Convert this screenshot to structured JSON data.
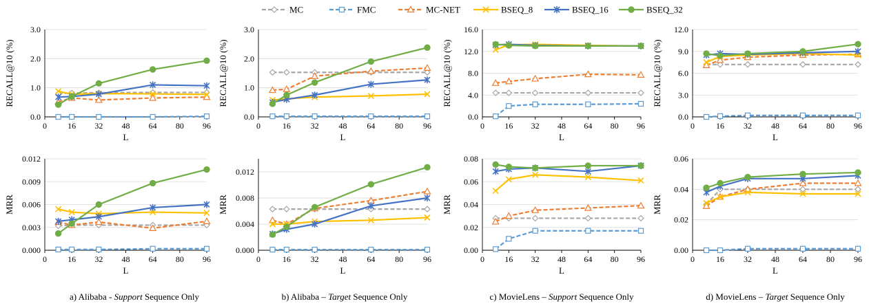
{
  "legend": [
    {
      "name": "MC",
      "color": "#A6A6A6",
      "dash": "6,3",
      "marker": "diamond"
    },
    {
      "name": "FMC",
      "color": "#5B9BD5",
      "dash": "6,3",
      "marker": "square"
    },
    {
      "name": "MC-NET",
      "color": "#ED7D31",
      "dash": "6,3",
      "marker": "triangle"
    },
    {
      "name": "BSEQ_8",
      "color": "#FFC000",
      "dash": "",
      "marker": "x"
    },
    {
      "name": "BSEQ_16",
      "color": "#4472C4",
      "dash": "",
      "marker": "star"
    },
    {
      "name": "BSEQ_32",
      "color": "#70AD47",
      "dash": "",
      "marker": "circle"
    }
  ],
  "captions": [
    {
      "pre": "a) Alibaba - ",
      "em": "Support",
      "post": " Sequence Only"
    },
    {
      "pre": "b) Alibaba – ",
      "em": "Target",
      "post": " Sequence Only"
    },
    {
      "pre": "c) MovieLens – ",
      "em": "Support",
      "post": " Sequence Only"
    },
    {
      "pre": "d) MovieLens – ",
      "em": "Target",
      "post": " Sequence Only"
    }
  ],
  "chart_data": [
    {
      "id": "a-recall",
      "type": "line",
      "xlabel": "L",
      "ylabel": "RECALL@10 (%)",
      "x": [
        8,
        16,
        32,
        64,
        96
      ],
      "xlim": [
        0,
        96
      ],
      "xticks": [
        "0",
        "16",
        "32",
        "48",
        "64",
        "80",
        "96"
      ],
      "ylim": [
        0,
        3
      ],
      "yticks": [
        "0.0",
        "1.0",
        "2.0",
        "3.0"
      ],
      "series": [
        {
          "name": "MC",
          "values": [
            0.8,
            0.82,
            0.83,
            0.84,
            0.84
          ]
        },
        {
          "name": "FMC",
          "values": [
            0.0,
            0.0,
            0.0,
            0.0,
            0.02
          ]
        },
        {
          "name": "MC-NET",
          "values": [
            0.52,
            0.65,
            0.58,
            0.65,
            0.68
          ]
        },
        {
          "name": "BSEQ_8",
          "values": [
            0.88,
            0.78,
            0.8,
            0.79,
            0.77
          ]
        },
        {
          "name": "BSEQ_16",
          "values": [
            0.68,
            0.7,
            0.78,
            1.1,
            1.07
          ]
        },
        {
          "name": "BSEQ_32",
          "values": [
            0.42,
            0.7,
            1.15,
            1.63,
            1.93
          ]
        }
      ]
    },
    {
      "id": "b-recall",
      "type": "line",
      "xlabel": "L",
      "ylabel": "RECALL@10 (%)",
      "x": [
        8,
        16,
        32,
        64,
        96
      ],
      "xlim": [
        0,
        96
      ],
      "xticks": [
        "0",
        "16",
        "32",
        "48",
        "64",
        "80",
        "96"
      ],
      "ylim": [
        0,
        3
      ],
      "yticks": [
        "0.0",
        "1.0",
        "2.0",
        "3.0"
      ],
      "series": [
        {
          "name": "MC",
          "values": [
            1.53,
            1.53,
            1.53,
            1.53,
            1.53
          ]
        },
        {
          "name": "FMC",
          "values": [
            0.02,
            0.02,
            0.02,
            0.02,
            0.02
          ]
        },
        {
          "name": "MC-NET",
          "values": [
            0.92,
            0.95,
            1.4,
            1.57,
            1.68
          ]
        },
        {
          "name": "BSEQ_8",
          "values": [
            0.58,
            0.62,
            0.68,
            0.72,
            0.78
          ]
        },
        {
          "name": "BSEQ_16",
          "values": [
            0.5,
            0.6,
            0.75,
            1.12,
            1.27
          ]
        },
        {
          "name": "BSEQ_32",
          "values": [
            0.45,
            0.75,
            1.18,
            1.9,
            2.38
          ]
        }
      ]
    },
    {
      "id": "c-recall",
      "type": "line",
      "xlabel": "L",
      "ylabel": "RECALL@10 (%)",
      "x": [
        8,
        16,
        32,
        64,
        96
      ],
      "xlim": [
        0,
        96
      ],
      "xticks": [
        "0",
        "16",
        "32",
        "48",
        "64",
        "80",
        "96"
      ],
      "ylim": [
        0,
        16
      ],
      "yticks": [
        "0.0",
        "4.0",
        "8.0",
        "12.0",
        "16.0"
      ],
      "series": [
        {
          "name": "MC",
          "values": [
            4.4,
            4.4,
            4.4,
            4.4,
            4.4
          ]
        },
        {
          "name": "FMC",
          "values": [
            0.1,
            2.0,
            2.3,
            2.3,
            2.4
          ]
        },
        {
          "name": "MC-NET",
          "values": [
            6.2,
            6.5,
            7.0,
            7.8,
            7.7
          ]
        },
        {
          "name": "BSEQ_8",
          "values": [
            12.3,
            13.2,
            13.3,
            13.1,
            13.0
          ]
        },
        {
          "name": "BSEQ_16",
          "values": [
            13.2,
            13.3,
            13.1,
            13.0,
            13.0
          ]
        },
        {
          "name": "BSEQ_32",
          "values": [
            13.3,
            13.1,
            13.0,
            13.0,
            13.0
          ]
        }
      ]
    },
    {
      "id": "d-recall",
      "type": "line",
      "xlabel": "L",
      "ylabel": "RECALL@10 (%)",
      "x": [
        8,
        16,
        32,
        64,
        96
      ],
      "xlim": [
        0,
        96
      ],
      "xticks": [
        "0",
        "16",
        "32",
        "48",
        "64",
        "80",
        "96"
      ],
      "ylim": [
        0,
        12
      ],
      "yticks": [
        "0.0",
        "3.0",
        "6.0",
        "9.0",
        "12.0"
      ],
      "series": [
        {
          "name": "MC",
          "values": [
            7.2,
            7.2,
            7.2,
            7.2,
            7.2
          ]
        },
        {
          "name": "FMC",
          "values": [
            0.0,
            0.1,
            0.2,
            0.2,
            0.2
          ]
        },
        {
          "name": "MC-NET",
          "values": [
            7.1,
            7.8,
            8.2,
            8.5,
            8.6
          ]
        },
        {
          "name": "BSEQ_8",
          "values": [
            7.5,
            8.3,
            8.5,
            8.7,
            8.5
          ]
        },
        {
          "name": "BSEQ_16",
          "values": [
            8.5,
            8.7,
            8.6,
            8.8,
            9.0
          ]
        },
        {
          "name": "BSEQ_32",
          "values": [
            8.7,
            8.4,
            8.7,
            9.0,
            10.0
          ]
        }
      ]
    },
    {
      "id": "a-mrr",
      "type": "line",
      "xlabel": "L",
      "ylabel": "MRR",
      "x": [
        8,
        16,
        32,
        64,
        96
      ],
      "xlim": [
        0,
        96
      ],
      "xticks": [
        "0",
        "16",
        "32",
        "48",
        "64",
        "80",
        "96"
      ],
      "ylim": [
        0,
        0.012
      ],
      "yticks": [
        "0.000",
        "0.003",
        "0.006",
        "0.009",
        "0.012"
      ],
      "series": [
        {
          "name": "MC",
          "values": [
            0.0032,
            0.0033,
            0.0033,
            0.0033,
            0.0033
          ]
        },
        {
          "name": "FMC",
          "values": [
            0.0001,
            0.0001,
            0.0001,
            0.0002,
            0.0002
          ]
        },
        {
          "name": "MC-NET",
          "values": [
            0.0037,
            0.0033,
            0.0037,
            0.0029,
            0.0038
          ]
        },
        {
          "name": "BSEQ_8",
          "values": [
            0.0054,
            0.005,
            0.0048,
            0.005,
            0.0049
          ]
        },
        {
          "name": "BSEQ_16",
          "values": [
            0.0038,
            0.004,
            0.0044,
            0.0056,
            0.006
          ]
        },
        {
          "name": "BSEQ_32",
          "values": [
            0.0022,
            0.0035,
            0.006,
            0.0088,
            0.0106
          ]
        }
      ]
    },
    {
      "id": "b-mrr",
      "type": "line",
      "xlabel": "L",
      "ylabel": "MRR",
      "x": [
        8,
        16,
        32,
        64,
        96
      ],
      "xlim": [
        0,
        96
      ],
      "xticks": [
        "0",
        "16",
        "32",
        "48",
        "64",
        "80",
        "96"
      ],
      "ylim": [
        0,
        0.014
      ],
      "yticks": [
        "0.000",
        "0.004",
        "0.008",
        "0.012"
      ],
      "series": [
        {
          "name": "MC",
          "values": [
            0.0063,
            0.0063,
            0.0063,
            0.0063,
            0.0063
          ]
        },
        {
          "name": "FMC",
          "values": [
            0.0001,
            0.0001,
            0.0001,
            0.0001,
            0.0001
          ]
        },
        {
          "name": "MC-NET",
          "values": [
            0.0046,
            0.004,
            0.0064,
            0.0076,
            0.009
          ]
        },
        {
          "name": "BSEQ_8",
          "values": [
            0.004,
            0.004,
            0.0044,
            0.0046,
            0.005
          ]
        },
        {
          "name": "BSEQ_16",
          "values": [
            0.0025,
            0.0032,
            0.004,
            0.0068,
            0.008
          ]
        },
        {
          "name": "BSEQ_32",
          "values": [
            0.0024,
            0.0036,
            0.0066,
            0.0101,
            0.0127
          ]
        }
      ]
    },
    {
      "id": "c-mrr",
      "type": "line",
      "xlabel": "L",
      "ylabel": "MRR",
      "x": [
        8,
        16,
        32,
        64,
        96
      ],
      "xlim": [
        0,
        96
      ],
      "xticks": [
        "0",
        "16",
        "32",
        "48",
        "64",
        "80",
        "96"
      ],
      "ylim": [
        0,
        0.08
      ],
      "yticks": [
        "0.00",
        "0.02",
        "0.04",
        "0.06",
        "0.08"
      ],
      "series": [
        {
          "name": "MC",
          "values": [
            0.028,
            0.028,
            0.028,
            0.028,
            0.028
          ]
        },
        {
          "name": "FMC",
          "values": [
            0.001,
            0.01,
            0.017,
            0.017,
            0.017
          ]
        },
        {
          "name": "MC-NET",
          "values": [
            0.025,
            0.03,
            0.035,
            0.037,
            0.039
          ]
        },
        {
          "name": "BSEQ_8",
          "values": [
            0.052,
            0.062,
            0.066,
            0.064,
            0.061
          ]
        },
        {
          "name": "BSEQ_16",
          "values": [
            0.069,
            0.071,
            0.072,
            0.069,
            0.074
          ]
        },
        {
          "name": "BSEQ_32",
          "values": [
            0.075,
            0.073,
            0.072,
            0.074,
            0.074
          ]
        }
      ]
    },
    {
      "id": "d-mrr",
      "type": "line",
      "xlabel": "L",
      "ylabel": "MRR",
      "x": [
        8,
        16,
        32,
        64,
        96
      ],
      "xlim": [
        0,
        96
      ],
      "xticks": [
        "0",
        "16",
        "32",
        "48",
        "64",
        "80",
        "96"
      ],
      "ylim": [
        0,
        0.06
      ],
      "yticks": [
        "0.00",
        "0.02",
        "0.04",
        "0.06"
      ],
      "series": [
        {
          "name": "MC",
          "values": [
            0.03,
            0.04,
            0.04,
            0.04,
            0.04
          ]
        },
        {
          "name": "FMC",
          "values": [
            0.0,
            0.0,
            0.001,
            0.001,
            0.001
          ]
        },
        {
          "name": "MC-NET",
          "values": [
            0.029,
            0.035,
            0.04,
            0.044,
            0.044
          ]
        },
        {
          "name": "BSEQ_8",
          "values": [
            0.031,
            0.035,
            0.038,
            0.037,
            0.037
          ]
        },
        {
          "name": "BSEQ_16",
          "values": [
            0.038,
            0.042,
            0.047,
            0.047,
            0.049
          ]
        },
        {
          "name": "BSEQ_32",
          "values": [
            0.041,
            0.044,
            0.048,
            0.05,
            0.051
          ]
        }
      ]
    }
  ]
}
